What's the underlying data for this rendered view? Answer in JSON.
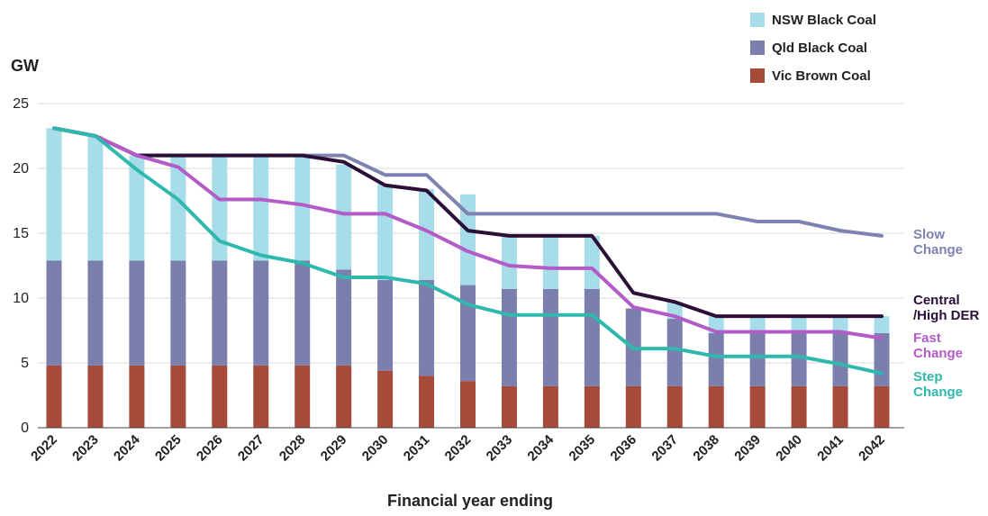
{
  "chart_data": {
    "type": "bar",
    "stacked": true,
    "categories": [
      "2022",
      "2023",
      "2024",
      "2025",
      "2026",
      "2027",
      "2028",
      "2029",
      "2030",
      "2031",
      "2032",
      "2033",
      "2034",
      "2035",
      "2036",
      "2037",
      "2038",
      "2039",
      "2040",
      "2041",
      "2042"
    ],
    "ylabel": "GW",
    "xlabel": "Financial year ending",
    "ylim": [
      0,
      25
    ],
    "yticks": [
      0,
      5,
      10,
      15,
      20,
      25
    ],
    "grid": true,
    "legend_position": "top-right",
    "bar_series": [
      {
        "name": "Vic Brown Coal",
        "color": "#a84a3a",
        "values": [
          4.8,
          4.8,
          4.8,
          4.8,
          4.8,
          4.8,
          4.8,
          4.8,
          4.4,
          4.0,
          3.6,
          3.2,
          3.2,
          3.2,
          3.2,
          3.2,
          3.2,
          3.2,
          3.2,
          3.2,
          3.2
        ]
      },
      {
        "name": "Qld Black Coal",
        "color": "#7b7fad",
        "values": [
          8.1,
          8.1,
          8.1,
          8.1,
          8.1,
          8.1,
          8.1,
          7.4,
          7.0,
          7.4,
          7.4,
          7.5,
          7.5,
          7.5,
          6.0,
          5.2,
          4.1,
          4.1,
          4.1,
          4.1,
          4.1
        ]
      },
      {
        "name": "NSW Black Coal",
        "color": "#a6dde9",
        "values": [
          10.2,
          9.6,
          8.1,
          8.1,
          8.1,
          8.1,
          8.1,
          8.1,
          7.4,
          7.0,
          7.0,
          4.1,
          4.1,
          4.1,
          0.0,
          1.3,
          1.3,
          1.3,
          1.3,
          1.3,
          1.3
        ]
      }
    ],
    "line_series": [
      {
        "name": "Slow Change",
        "label_lines": [
          "Slow",
          "Change"
        ],
        "color": "#7f82b0",
        "values": [
          23.1,
          22.5,
          21.0,
          21.0,
          21.0,
          21.0,
          21.0,
          21.0,
          19.5,
          19.5,
          16.5,
          16.5,
          16.5,
          16.5,
          16.5,
          16.5,
          16.5,
          15.9,
          15.9,
          15.2,
          14.8
        ]
      },
      {
        "name": "Central /High DER",
        "label_lines": [
          "Central",
          "/High DER"
        ],
        "color": "#2b0f36",
        "values": [
          23.1,
          22.5,
          21.0,
          21.0,
          21.0,
          21.0,
          21.0,
          20.5,
          18.7,
          18.3,
          15.2,
          14.8,
          14.8,
          14.8,
          10.4,
          9.7,
          8.6,
          8.6,
          8.6,
          8.6,
          8.6
        ]
      },
      {
        "name": "Fast Change",
        "label_lines": [
          "Fast",
          "Change"
        ],
        "color": "#b35cc8",
        "values": [
          23.1,
          22.5,
          21.0,
          20.1,
          17.6,
          17.6,
          17.2,
          16.5,
          16.5,
          15.2,
          13.6,
          12.5,
          12.3,
          12.3,
          9.3,
          8.6,
          7.4,
          7.4,
          7.4,
          7.4,
          6.9
        ]
      },
      {
        "name": "Step Change",
        "label_lines": [
          "Step",
          "Change"
        ],
        "color": "#2fb8ad",
        "values": [
          23.1,
          22.5,
          19.9,
          17.6,
          14.4,
          13.3,
          12.7,
          11.6,
          11.6,
          11.1,
          9.5,
          8.7,
          8.7,
          8.7,
          6.1,
          6.1,
          5.5,
          5.5,
          5.5,
          4.9,
          4.2
        ]
      }
    ]
  }
}
